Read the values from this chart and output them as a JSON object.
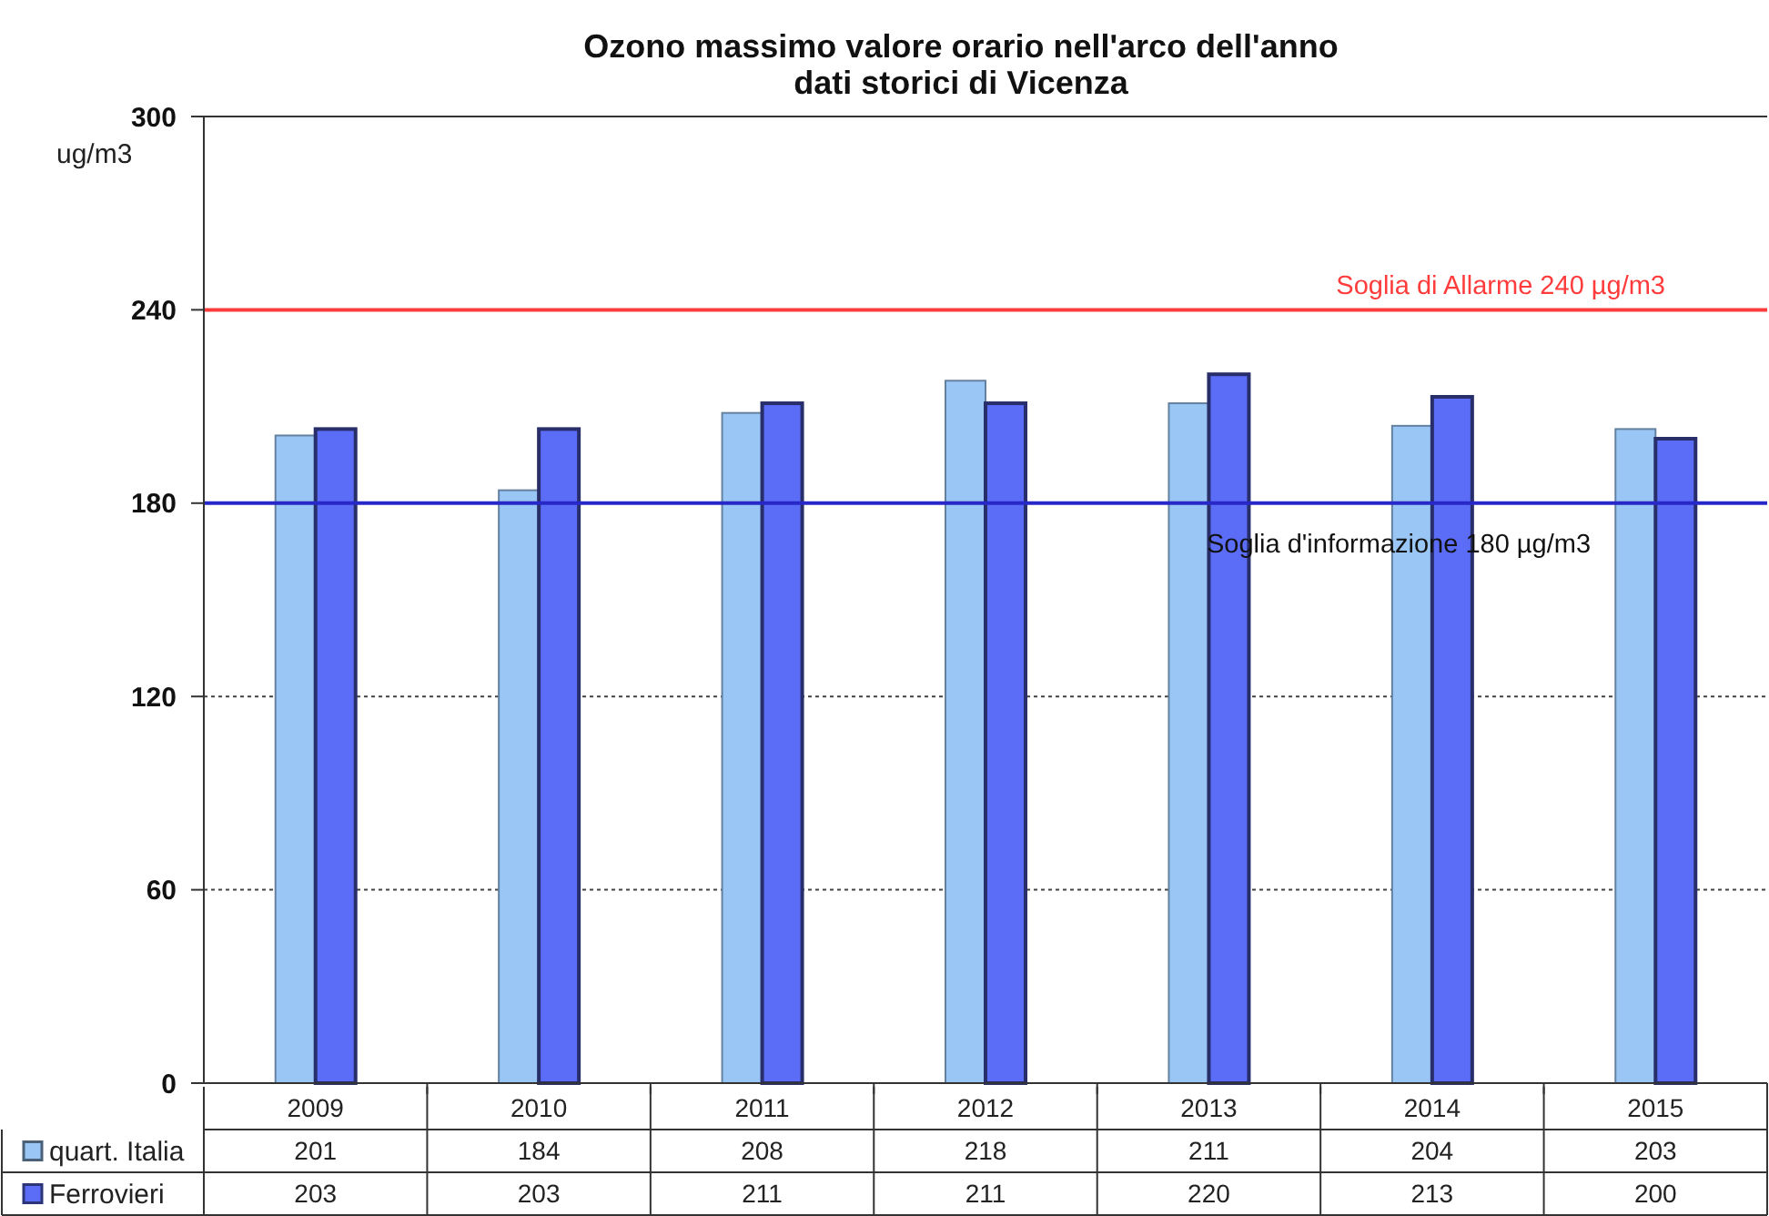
{
  "chart_data": {
    "type": "bar",
    "title": "Ozono massimo valore orario nell'arco dell'anno\ndati storici di Vicenza",
    "ylabel": "ug/m3",
    "categories": [
      "2009",
      "2010",
      "2011",
      "2012",
      "2013",
      "2014",
      "2015"
    ],
    "series": [
      {
        "name": "quart. Italia",
        "color": "#99c6f5",
        "values": [
          201,
          184,
          208,
          218,
          211,
          204,
          203
        ]
      },
      {
        "name": "Ferrovieri",
        "color": "#5b6cf6",
        "values": [
          203,
          203,
          211,
          211,
          220,
          213,
          200
        ]
      }
    ],
    "ylim": [
      0,
      300
    ],
    "yticks": [
      0,
      60,
      120,
      180,
      240,
      300
    ],
    "grid": "y",
    "legend": "bottom",
    "data_labels": true,
    "ref_lines": [
      {
        "axis": "y",
        "value": 240,
        "label": "Soglia di Allarme 240 µg/m3",
        "color": "#ff3b3b"
      },
      {
        "axis": "y",
        "value": 180,
        "label": "Soglia d'informazione 180 µg/m3",
        "color": "#2828c8"
      }
    ]
  }
}
